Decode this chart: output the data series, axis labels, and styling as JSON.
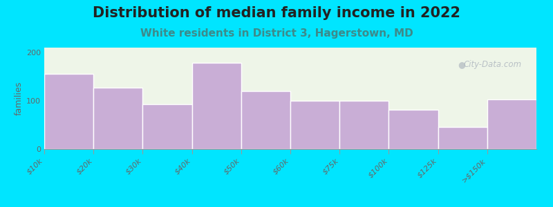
{
  "title": "Distribution of median family income in 2022",
  "subtitle": "White residents in District 3, Hagerstown, MD",
  "categories": [
    "$10k",
    "$20k",
    "$30k",
    "$40k",
    "$50k",
    "$60k",
    "$75k",
    "$100k",
    "$125k",
    ">$150k"
  ],
  "tick_positions_labels": [
    "$10k",
    "$20k",
    "$30k",
    "$40k",
    "$50k",
    "$60k",
    "$75k",
    "$100k",
    "$125k",
    ">$150k"
  ],
  "values": [
    155,
    127,
    93,
    178,
    120,
    100,
    100,
    82,
    46,
    103
  ],
  "bar_widths": [
    1,
    1,
    1,
    1,
    1,
    1,
    1,
    2,
    2,
    2
  ],
  "bar_color": "#c9aed6",
  "bar_edge_color": "#ffffff",
  "background_outer": "#00e5ff",
  "background_inner_top": "#eef5e8",
  "background_inner_bottom": "#f5f8f0",
  "ylabel": "families",
  "ylim": [
    0,
    210
  ],
  "yticks": [
    0,
    100,
    200
  ],
  "title_fontsize": 15,
  "subtitle_fontsize": 11,
  "subtitle_color": "#3d8a8a",
  "ylabel_fontsize": 9,
  "tick_label_fontsize": 8,
  "watermark": "City-Data.com"
}
